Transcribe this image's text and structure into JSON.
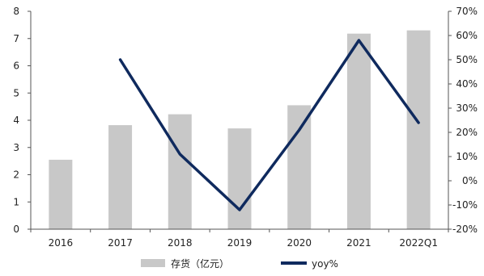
{
  "chart_data": {
    "type": "bar",
    "categories": [
      "2016",
      "2017",
      "2018",
      "2019",
      "2020",
      "2021",
      "2022Q1"
    ],
    "series": [
      {
        "name": "存货（亿元）",
        "type": "bar",
        "axis": "left",
        "color": "#c8c8c8",
        "values": [
          2.55,
          3.82,
          4.22,
          3.7,
          4.55,
          7.18,
          7.3
        ]
      },
      {
        "name": "yoy%",
        "type": "line",
        "axis": "right",
        "color": "#0f2a5e",
        "values": [
          null,
          50,
          11,
          -12,
          21,
          58,
          24
        ]
      }
    ],
    "y_left": {
      "min": 0,
      "max": 8,
      "step": 1,
      "ticks": [
        "0",
        "1",
        "2",
        "3",
        "4",
        "5",
        "6",
        "7",
        "8"
      ]
    },
    "y_right": {
      "min": -20,
      "max": 70,
      "step": 10,
      "ticks": [
        "-20%",
        "-10%",
        "0%",
        "10%",
        "20%",
        "30%",
        "40%",
        "50%",
        "60%",
        "70%"
      ]
    },
    "title": "",
    "xlabel": "",
    "ylabel": "",
    "grid": false,
    "legend_position": "bottom"
  }
}
